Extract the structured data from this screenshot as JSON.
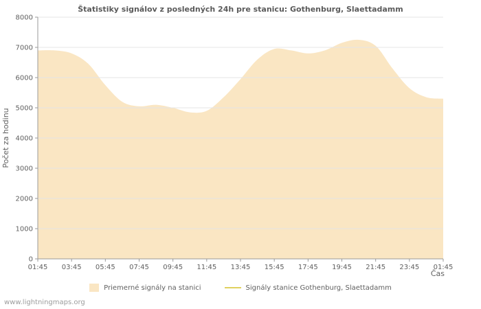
{
  "page": {
    "background": "#ffffff"
  },
  "chart_data": {
    "type": "area",
    "title": "Štatistiky signálov z posledných 24h pre stanicu: Gothenburg, Slaettadamm",
    "xlabel": "Čas",
    "ylabel": "Počet za hodinu",
    "ylim": [
      0,
      8000
    ],
    "ytick_step": 1000,
    "grid": true,
    "legend_position": "bottom",
    "x_tick_labels": [
      "01:45",
      "03:45",
      "05:45",
      "07:45",
      "09:45",
      "11:45",
      "13:45",
      "15:45",
      "17:45",
      "19:45",
      "21:45",
      "23:45",
      "01:45"
    ],
    "x_hours": [
      "01:45",
      "02:45",
      "03:45",
      "04:45",
      "05:45",
      "06:45",
      "07:45",
      "08:45",
      "09:45",
      "10:45",
      "11:45",
      "12:45",
      "13:45",
      "14:45",
      "15:45",
      "16:45",
      "17:45",
      "18:45",
      "19:45",
      "20:45",
      "21:45",
      "22:45",
      "23:45",
      "00:45",
      "01:45"
    ],
    "series": [
      {
        "name": "Priemerné signály na stanici",
        "type": "area",
        "color": "#fae6c3",
        "values": [
          6900,
          6900,
          6800,
          6450,
          5750,
          5200,
          5050,
          5100,
          5000,
          4850,
          4900,
          5350,
          5950,
          6600,
          6950,
          6900,
          6800,
          6900,
          7150,
          7250,
          7050,
          6300,
          5650,
          5350,
          5300
        ]
      },
      {
        "name": "Signály stanice Gothenburg, Slaettadamm",
        "type": "line",
        "color": "#e0d05e",
        "values": []
      }
    ]
  },
  "footer": {
    "watermark": "www.lightningmaps.org"
  }
}
